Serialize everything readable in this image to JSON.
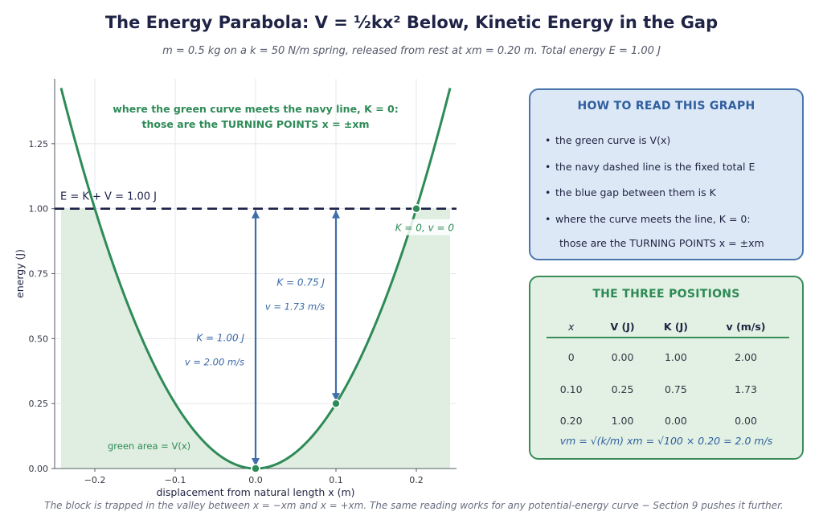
{
  "header": {
    "title": "The Energy Parabola:  V = ½kx² Below, Kinetic Energy in the Gap",
    "subtitle": "m = 0.5 kg on a k = 50 N/m spring, released from rest at xm = 0.20 m.   Total energy E = 1.00 J"
  },
  "footer": "The block is trapped in the valley between x = −xm and x = +xm.  The same reading works for any potential-energy curve − Section 9 pushes it further.",
  "colors": {
    "curve": "#2e8b57",
    "fill": "#dfeee0",
    "energy_line": "#1d2147",
    "arrow": "#3f6eaa",
    "ke_text": "#3a6aa8"
  },
  "chart_data": {
    "type": "line",
    "title": "The Energy Parabola:  V = ½kx² Below, Kinetic Energy in the Gap",
    "xlabel": "displacement from natural length   x   (m)",
    "ylabel": "energy   (J)",
    "xlim": [
      -0.25,
      0.25
    ],
    "ylim": [
      0.0,
      1.5
    ],
    "xticks": [
      -0.2,
      -0.1,
      0.0,
      0.1,
      0.2
    ],
    "xtick_labels": [
      "−0.2",
      "−0.1",
      "0.0",
      "0.1",
      "0.2"
    ],
    "yticks": [
      0.0,
      0.25,
      0.5,
      0.75,
      1.0,
      1.25
    ],
    "ytick_labels": [
      "0.00",
      "0.25",
      "0.50",
      "0.75",
      "1.00",
      "1.25"
    ],
    "grid": true,
    "curve": {
      "k": 50,
      "x_range": [
        -0.242,
        0.242
      ]
    },
    "fill_range": [
      -0.242,
      0.242
    ],
    "energy_level": 1.0,
    "energy_label": "E = K + V = 1.00 J",
    "points": [
      {
        "x": 0.0,
        "y": 0.0
      },
      {
        "x": 0.1,
        "y": 0.25
      },
      {
        "x": 0.2,
        "y": 1.0
      }
    ],
    "arrows": [
      {
        "x": 0.0,
        "from": 0.0,
        "to": 1.0,
        "label_k": "K = 1.00 J",
        "label_v": "v = 2.00 m/s"
      },
      {
        "x": 0.1,
        "from": 0.25,
        "to": 1.0,
        "label_k": "K = 0.75 J",
        "label_v": "v = 1.73 m/s"
      }
    ],
    "annotations": {
      "turning_point": "K = 0,   v = 0",
      "green_area": "green area  = V(x)",
      "top_line1": "where the green curve meets the navy line, K = 0:",
      "top_line2": "those are the TURNING POINTS  x = ±xm"
    }
  },
  "read_card": {
    "title": "HOW TO READ THIS GRAPH",
    "items": [
      "the green curve is V(x)",
      "the navy dashed line is the fixed total E",
      "the blue gap between them is K",
      "where the curve meets the line, K = 0:"
    ],
    "continuation": "those are the TURNING POINTS  x = ±xm"
  },
  "positions_card": {
    "title": "THE THREE POSITIONS",
    "headers": [
      "x",
      "V (J)",
      "K (J)",
      "v (m/s)"
    ],
    "rows": [
      [
        "0",
        "0.00",
        "1.00",
        "2.00"
      ],
      [
        "0.10",
        "0.25",
        "0.75",
        "1.73"
      ],
      [
        "0.20",
        "1.00",
        "0.00",
        "0.00"
      ]
    ],
    "formula": "vm = √(k/m) xm = √100 × 0.20 = 2.0 m/s"
  }
}
